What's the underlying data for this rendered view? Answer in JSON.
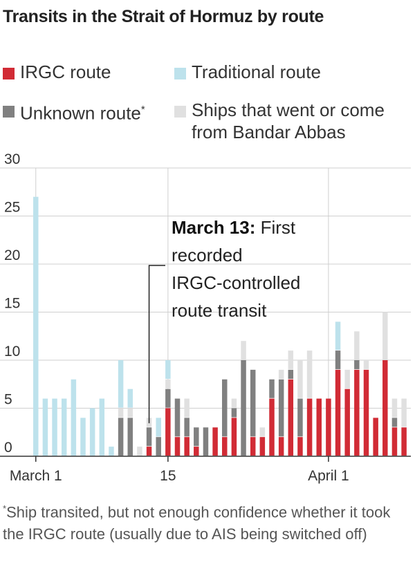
{
  "title": "Transits in the Strait of Hormuz by route",
  "legend": [
    {
      "label": "IRGC route",
      "color": "#d12b35"
    },
    {
      "label": "Traditional route",
      "color": "#bde2ec"
    },
    {
      "label": "Unknown route",
      "marker": "*",
      "color": "#808080"
    },
    {
      "label": "Ships that went or come from Bandar Abbas",
      "line1": "Ships that went or come",
      "line2": "from Bandar Abbas",
      "color": "#e0e0e0"
    }
  ],
  "footnote": {
    "marker": "*",
    "text": "Ship transited, but not enough confidence whether it took the IRGC route (usually due to AIS being switched off)"
  },
  "annotation": {
    "bold": "March 13:",
    "line1_rest": " First",
    "line2": "recorded",
    "line3": "IRGC-controlled",
    "line4": "route transit"
  },
  "chart_data": {
    "type": "bar",
    "stacked": true,
    "x": [
      "Mar 1",
      "Mar 2",
      "Mar 3",
      "Mar 4",
      "Mar 5",
      "Mar 6",
      "Mar 7",
      "Mar 8",
      "Mar 9",
      "Mar 10",
      "Mar 11",
      "Mar 12",
      "Mar 13",
      "Mar 14",
      "Mar 15",
      "Mar 16",
      "Mar 17",
      "Mar 18",
      "Mar 19",
      "Mar 20",
      "Mar 21",
      "Mar 22",
      "Mar 23",
      "Mar 24",
      "Mar 25",
      "Mar 26",
      "Mar 27",
      "Mar 28",
      "Mar 29",
      "Mar 30",
      "Mar 31",
      "Apr 1",
      "Apr 2",
      "Apr 3",
      "Apr 4",
      "Apr 5",
      "Apr 6",
      "Apr 7",
      "Apr 8",
      "Apr 9"
    ],
    "x_tick_labels": [
      {
        "index": 0,
        "label": "March 1"
      },
      {
        "index": 14,
        "label": "15"
      },
      {
        "index": 31,
        "label": "April 1"
      }
    ],
    "series": [
      {
        "name": "IRGC route",
        "color": "#d12b35",
        "values": [
          0,
          0,
          0,
          0,
          0,
          0,
          0,
          0,
          0,
          0,
          0,
          0,
          1,
          0,
          5,
          2,
          2,
          1,
          0,
          3,
          2,
          4,
          0,
          2,
          2,
          6,
          2,
          8,
          2,
          6,
          6,
          6,
          9,
          7,
          9,
          9,
          4,
          10,
          3,
          3
        ]
      },
      {
        "name": "Unknown route",
        "color": "#808080",
        "values": [
          0,
          0,
          0,
          0,
          0,
          0,
          0,
          0,
          0,
          4,
          4,
          0,
          2,
          2,
          2,
          4,
          2,
          2,
          3,
          0,
          6,
          1,
          10,
          7,
          0,
          2,
          6,
          1,
          4,
          0,
          0,
          0,
          2,
          0,
          1,
          0,
          0,
          0,
          1,
          0
        ]
      },
      {
        "name": "Ships that went or come from Bandar Abbas",
        "color": "#e0e0e0",
        "values": [
          0,
          0,
          0,
          0,
          0,
          0,
          0,
          0,
          0,
          1,
          1,
          1,
          1,
          0,
          1,
          0,
          2,
          0,
          0,
          0,
          0,
          1,
          2,
          0,
          1,
          0,
          1,
          2,
          4,
          5,
          0,
          0,
          0,
          2,
          3,
          1,
          0,
          5,
          2,
          3
        ]
      },
      {
        "name": "Traditional route",
        "color": "#bde2ec",
        "values": [
          27,
          6,
          6,
          6,
          8,
          4,
          5,
          6,
          1,
          5,
          2,
          0,
          0,
          2,
          2,
          0,
          0,
          0,
          0,
          0,
          0,
          0,
          0,
          0,
          0,
          0,
          0,
          0,
          0,
          0,
          0,
          0,
          3,
          0,
          0,
          0,
          0,
          0,
          0,
          0
        ]
      }
    ],
    "yticks": [
      0,
      5,
      10,
      15,
      20,
      25,
      30
    ],
    "ylim": [
      0,
      30
    ],
    "grid": true
  }
}
